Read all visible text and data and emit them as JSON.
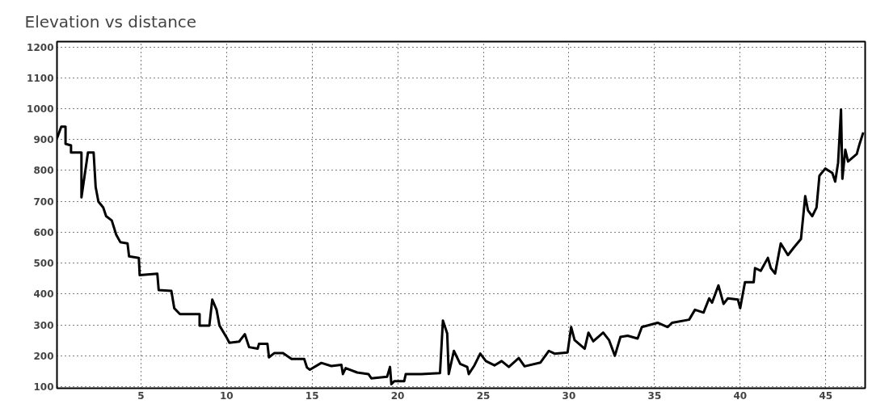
{
  "chart_data": {
    "type": "line",
    "title": "Elevation vs distance",
    "x": [
      0.1,
      0.35,
      0.6,
      0.6,
      0.92,
      0.92,
      1.42,
      1.53,
      1.53,
      1.91,
      2.24,
      2.36,
      2.52,
      2.8,
      2.97,
      3.3,
      3.56,
      3.8,
      4.22,
      4.31,
      4.88,
      4.93,
      5.96,
      6.04,
      6.78,
      6.95,
      7.28,
      8.43,
      8.43,
      9.0,
      9.17,
      9.42,
      9.59,
      10.0,
      10.17,
      10.74,
      11.07,
      11.32,
      11.82,
      11.9,
      12.39,
      12.48,
      12.8,
      13.3,
      13.8,
      14.54,
      14.7,
      14.87,
      15.54,
      16.12,
      16.71,
      16.8,
      16.96,
      17.63,
      18.29,
      18.46,
      19.38,
      19.55,
      19.63,
      19.8,
      20.38,
      20.47,
      21.39,
      22.47,
      22.64,
      22.89,
      22.98,
      23.28,
      23.65,
      24.06,
      24.15,
      24.48,
      24.82,
      25.15,
      25.65,
      26.07,
      26.49,
      27.07,
      27.41,
      28.33,
      28.83,
      29.16,
      29.92,
      30.13,
      30.33,
      30.92,
      31.14,
      31.42,
      32.0,
      32.34,
      32.68,
      33.01,
      33.43,
      34.01,
      34.26,
      35.18,
      35.77,
      36.02,
      37.02,
      37.36,
      37.86,
      38.19,
      38.36,
      38.73,
      39.03,
      39.28,
      39.87,
      40.0,
      40.28,
      40.79,
      40.87,
      41.2,
      41.62,
      41.79,
      42.04,
      42.37,
      42.79,
      43.13,
      43.55,
      43.8,
      43.96,
      44.21,
      44.46,
      44.63,
      44.97,
      45.38,
      45.55,
      45.72,
      45.89,
      45.97,
      46.14,
      46.3,
      46.81,
      46.97,
      47.19
    ],
    "series": [
      {
        "color": "#000000",
        "values": [
          904,
          942,
          942,
          886,
          881,
          858,
          858,
          858,
          713,
          858,
          858,
          746,
          699,
          680,
          652,
          638,
          592,
          568,
          564,
          522,
          517,
          461,
          466,
          413,
          410,
          354,
          335,
          335,
          298,
          298,
          382,
          349,
          298,
          260,
          242,
          246,
          270,
          228,
          223,
          239,
          239,
          195,
          209,
          209,
          190,
          190,
          162,
          155,
          177,
          167,
          171,
          141,
          160,
          146,
          141,
          127,
          132,
          164,
          108,
          118,
          118,
          141,
          141,
          144,
          314,
          272,
          141,
          216,
          174,
          164,
          141,
          169,
          207,
          183,
          169,
          183,
          164,
          193,
          166,
          178,
          216,
          207,
          211,
          293,
          251,
          223,
          275,
          247,
          275,
          251,
          200,
          261,
          265,
          256,
          293,
          307,
          293,
          307,
          317,
          349,
          340,
          386,
          372,
          428,
          368,
          386,
          382,
          354,
          438,
          438,
          484,
          475,
          517,
          484,
          466,
          564,
          526,
          550,
          578,
          717,
          671,
          652,
          680,
          783,
          806,
          792,
          764,
          825,
          997,
          773,
          867,
          829,
          853,
          885,
          923
        ]
      }
    ],
    "xlim": [
      0.1,
      47.3
    ],
    "ylim": [
      95,
      1217
    ],
    "xticks": [
      5,
      10,
      15,
      20,
      25,
      30,
      35,
      40,
      45
    ],
    "yticks": [
      100,
      200,
      300,
      400,
      500,
      600,
      700,
      800,
      900,
      1000,
      1100,
      1200
    ],
    "grid": true
  }
}
